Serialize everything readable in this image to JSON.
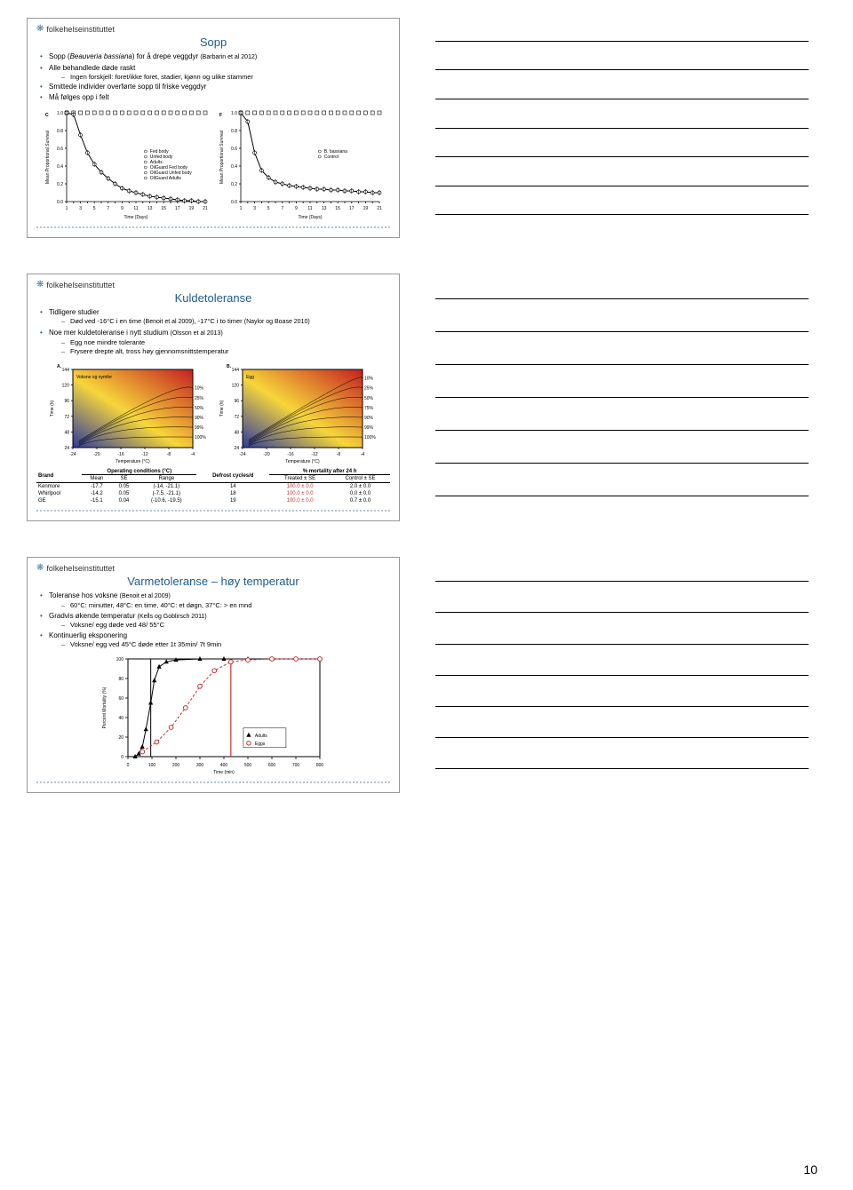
{
  "page_number": "10",
  "logo_text": "folkehelseinstituttet",
  "slide1": {
    "title": "Sopp",
    "b1": "Sopp (",
    "b1i": "Beauveria bassiana",
    "b1b": ") for å drepe veggdyr ",
    "b1c": "(Barbarin et al 2012)",
    "b2": "Alle behandlede døde raskt",
    "b2s1": "Ingen forskjell: foret/ikke foret, stadier, kjønn og ulike stammer",
    "b3": "Smittede individer overførte sopp til friske veggdyr",
    "b4": "Må følges opp i felt",
    "chartC": {
      "label": "C",
      "ylab": "Mean Proportional Survival",
      "xlab": "Time (Days)",
      "yticks": [
        "0.0",
        "0.2",
        "0.4",
        "0.6",
        "0.8",
        "1.0"
      ],
      "xticks_count": 21,
      "control_y": 1.0,
      "treated": [
        1.0,
        0.98,
        0.75,
        0.55,
        0.42,
        0.33,
        0.26,
        0.2,
        0.15,
        0.12,
        0.1,
        0.08,
        0.06,
        0.05,
        0.04,
        0.03,
        0.02,
        0.01,
        0.01,
        0.0,
        0.0
      ],
      "line_color": "#000000",
      "marker_fill": "#ffffff",
      "legend": [
        "Fed body",
        "Unfed body",
        "Adults",
        "OilGuard Fed body",
        "OilGuard Unfed body",
        "OilGuard Adults"
      ]
    },
    "chartF": {
      "label": "F",
      "ylab": "Mean Proportional Survival",
      "xlab": "Time (Days)",
      "control_y": 1.0,
      "treated": [
        1.0,
        0.9,
        0.55,
        0.35,
        0.27,
        0.22,
        0.2,
        0.18,
        0.17,
        0.16,
        0.15,
        0.14,
        0.14,
        0.13,
        0.13,
        0.12,
        0.12,
        0.11,
        0.11,
        0.1,
        0.1
      ],
      "legend": [
        "B. bassiana",
        "Control"
      ]
    }
  },
  "slide2": {
    "title": "Kuldetoleranse",
    "b1": "Tidligere studier",
    "b1s1a": "Død ved -16°C i en time ",
    "b1s1b": "(Benoit et al 2009)",
    "b1s1c": ", -17°C i to timer ",
    "b1s1d": "(Naylor og Boase 2010)",
    "b2a": "Noe mer kuldetoleranse i nytt studium ",
    "b2b": "(Olsson et al 2013)",
    "b2s1": "Egg noe mindre tolerante",
    "b2s2": "Frysere drepte alt, tross høy gjennomsnittstemperatur",
    "panelA": {
      "label": "A.",
      "title": "Voksne og nymfer",
      "xlab": "Temperature (°C)",
      "ylab": "Time (h)",
      "xlim": [
        -24,
        -4
      ],
      "ylim": [
        24,
        144
      ],
      "ytick": [
        24,
        48,
        72,
        96,
        120,
        144
      ],
      "xtick": [
        -24,
        -20,
        -16,
        -12,
        -8,
        -4
      ],
      "contours": [
        "100%",
        "99%",
        "90%",
        "50%",
        "25%",
        "10%"
      ],
      "colors": {
        "cold": "#2b3aa0",
        "mid": "#f7d63a",
        "hot": "#c32020"
      }
    },
    "panelB": {
      "label": "B.",
      "title": "Egg",
      "xlab": "Temperature (°C)",
      "ylab": "Time (h)",
      "xlim": [
        -24,
        -4
      ],
      "ylim": [
        24,
        144
      ],
      "contours": [
        "100%",
        "99%",
        "90%",
        "75%",
        "50%",
        "25%",
        "10%"
      ]
    },
    "table": {
      "headers": [
        "Brand",
        "Mean",
        "SE",
        "Range",
        "Defrost cycles/d",
        "Treated ± SE",
        "Control ± SE"
      ],
      "group1": "Operating conditions (°C)",
      "group2": "% mortality after 24 h",
      "rows": [
        [
          "Kenmore",
          "-17.7",
          "0.05",
          "(-14, -21.1)",
          "14",
          "100.0 ± 0.0",
          "2.0 ± 0.0"
        ],
        [
          "Whirlpool",
          "-14.2",
          "0.05",
          "(-7.5, -21.1)",
          "18",
          "100.0 ± 0.0",
          "0.0 ± 0.0"
        ],
        [
          "GE",
          "-15.1",
          "0.04",
          "(-10.6, -19.5)",
          "19",
          "100.0 ± 0.0",
          "0.7 ± 0.0"
        ]
      ],
      "treated_color": "#c83232"
    }
  },
  "slide3": {
    "title": "Varmetoleranse – høy temperatur",
    "b1a": "Toleranse hos voksne ",
    "b1b": "(Benoit et al 2009)",
    "b1s1": "60°C: minutter, 48°C: en time, 40°C: et døgn, 37°C: > en mnd",
    "b2a": "Gradvis økende temperatur ",
    "b2b": "(Kells og Goblirsch 2011)",
    "b2s1": "Voksne/ egg døde ved 48/ 55°C",
    "b3": "Kontinuerlig eksponering",
    "b3s1": "Voksne/ egg ved 45°C døde etter 1t 35min/ 7t 9min",
    "chart": {
      "ylab": "Percent Mortality (%)",
      "xlab": "Time (min)",
      "xlim": [
        0,
        800
      ],
      "ylim": [
        0,
        100
      ],
      "xticks": [
        0,
        100,
        200,
        300,
        400,
        500,
        600,
        700,
        800
      ],
      "yticks": [
        0,
        20,
        40,
        60,
        80,
        100
      ],
      "adults": {
        "x": [
          30,
          45,
          60,
          75,
          95,
          110,
          130,
          160,
          200,
          300,
          400,
          500,
          600,
          800
        ],
        "y": [
          0,
          3,
          10,
          28,
          55,
          78,
          92,
          97,
          99,
          100,
          100,
          100,
          100,
          100
        ],
        "color": "#000000",
        "marker": "triangle"
      },
      "eggs": {
        "x": [
          60,
          120,
          180,
          240,
          300,
          360,
          429,
          500,
          600,
          700,
          800
        ],
        "y": [
          5,
          15,
          30,
          50,
          72,
          88,
          97,
          99,
          100,
          100,
          100
        ],
        "color": "#c83232",
        "marker": "circle"
      },
      "vline_adult": 95,
      "vline_egg": 429,
      "legend": [
        "Adults",
        "Eggs"
      ]
    }
  }
}
